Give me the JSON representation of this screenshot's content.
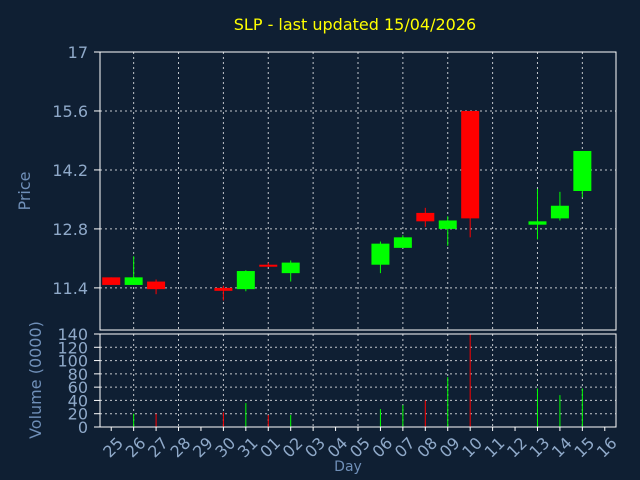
{
  "title": "SLP - last updated 15/04/2026",
  "colors": {
    "background": "#0f1f33",
    "plot_background": "#0f1f33",
    "frame": "#ffffff",
    "grid": "#ffffff",
    "axis_label": "#6f8fb8",
    "tick_label": "#8fa9c9",
    "title": "#ffff00",
    "up": "#00ff00",
    "down": "#ff0000"
  },
  "chart_data": [
    {
      "type": "candlestick",
      "ylabel": "Price",
      "ylim": [
        10.4,
        17
      ],
      "yticks": [
        11.4,
        12.8,
        14.2,
        15.6,
        17
      ],
      "grid": true,
      "candles": [
        {
          "day": "25",
          "open": 11.65,
          "high": 11.65,
          "low": 11.47,
          "close": 11.47
        },
        {
          "day": "26",
          "open": 11.47,
          "high": 12.15,
          "low": 11.47,
          "close": 11.65
        },
        {
          "day": "27",
          "open": 11.55,
          "high": 11.6,
          "low": 11.25,
          "close": 11.37
        },
        {
          "day": "30",
          "open": 11.4,
          "high": 11.45,
          "low": 11.1,
          "close": 11.33
        },
        {
          "day": "31",
          "open": 11.37,
          "high": 11.82,
          "low": 11.32,
          "close": 11.8
        },
        {
          "day": "01",
          "open": 11.95,
          "high": 12.0,
          "low": 11.9,
          "close": 11.92
        },
        {
          "day": "02",
          "open": 11.75,
          "high": 12.05,
          "low": 11.55,
          "close": 12.0
        },
        {
          "day": "06",
          "open": 11.95,
          "high": 12.5,
          "low": 11.75,
          "close": 12.45
        },
        {
          "day": "07",
          "open": 12.35,
          "high": 12.65,
          "low": 12.35,
          "close": 12.6
        },
        {
          "day": "08",
          "open": 13.18,
          "high": 13.3,
          "low": 12.85,
          "close": 12.98
        },
        {
          "day": "09",
          "open": 12.8,
          "high": 13.1,
          "low": 12.4,
          "close": 13.0
        },
        {
          "day": "10",
          "open": 15.6,
          "high": 15.6,
          "low": 12.6,
          "close": 13.05
        },
        {
          "day": "13",
          "open": 12.9,
          "high": 13.75,
          "low": 12.55,
          "close": 12.98
        },
        {
          "day": "14",
          "open": 13.05,
          "high": 13.68,
          "low": 13.0,
          "close": 13.35
        },
        {
          "day": "15",
          "open": 13.7,
          "high": 14.65,
          "low": 13.55,
          "close": 14.65
        }
      ]
    },
    {
      "type": "bar",
      "ylabel": "Volume (0000)",
      "xlabel": "Day",
      "ylim": [
        0,
        140
      ],
      "yticks": [
        0,
        20,
        40,
        60,
        80,
        100,
        120,
        140
      ],
      "grid": true,
      "categories": [
        "25",
        "26",
        "27",
        "28",
        "29",
        "30",
        "31",
        "01",
        "02",
        "03",
        "04",
        "05",
        "06",
        "07",
        "08",
        "09",
        "10",
        "11",
        "12",
        "13",
        "14",
        "15",
        "16"
      ],
      "values": [
        0,
        20,
        20,
        0,
        0,
        22,
        36,
        18,
        18,
        0,
        0,
        0,
        27,
        33,
        40,
        75,
        140,
        0,
        0,
        58,
        48,
        58,
        0
      ],
      "directions": [
        "none",
        "up",
        "down",
        "none",
        "none",
        "down",
        "up",
        "down",
        "up",
        "none",
        "none",
        "none",
        "up",
        "up",
        "down",
        "up",
        "down",
        "none",
        "none",
        "up",
        "up",
        "up",
        "none"
      ]
    }
  ]
}
